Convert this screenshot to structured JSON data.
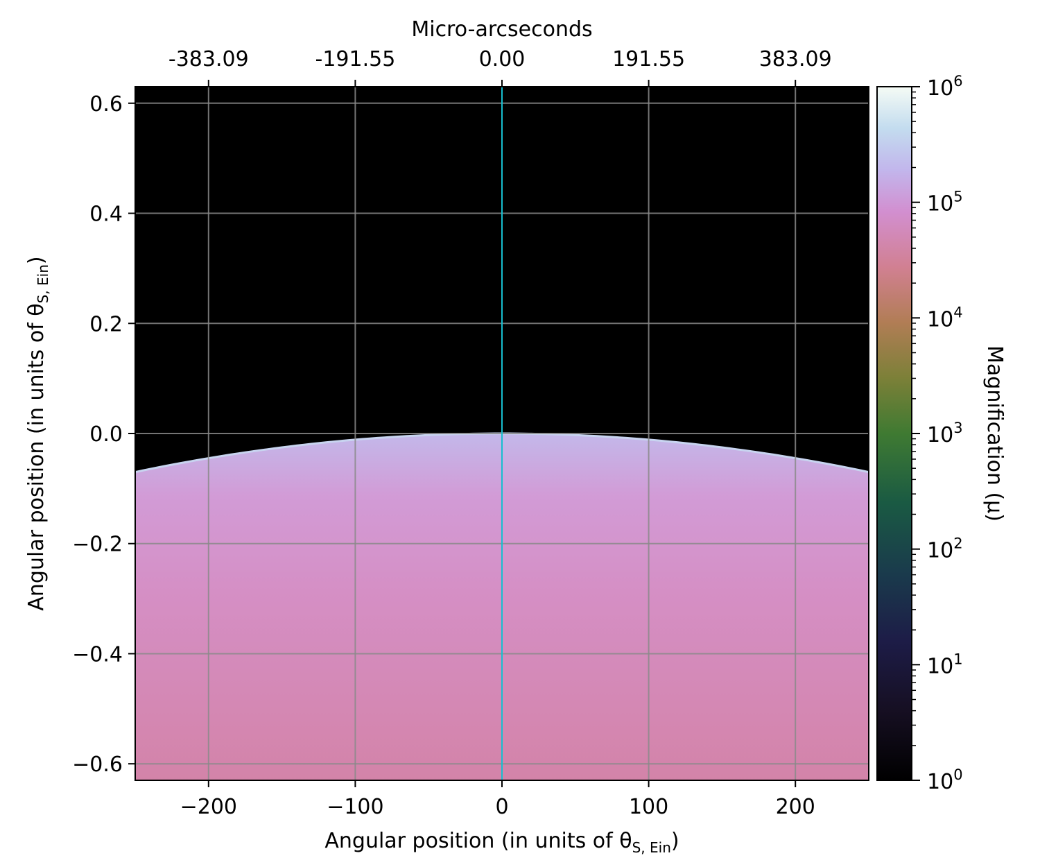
{
  "chart_data": {
    "type": "heatmap",
    "title": "",
    "xlabel": "Angular position (in units of θ",
    "xlabel_sub": "S, Ein",
    "xlabel_end": ")",
    "ylabel": "Angular position (in units of θ",
    "ylabel_sub": "S, Ein",
    "ylabel_end": ")",
    "top_xlabel": "Micro-arcseconds",
    "xlim": [
      -250,
      250
    ],
    "ylim": [
      -0.63,
      0.63
    ],
    "x_ticks": [
      -200,
      -100,
      0,
      100,
      200
    ],
    "x_tick_labels": [
      "−200",
      "−100",
      "0",
      "100",
      "200"
    ],
    "y_ticks": [
      0.6,
      0.4,
      0.2,
      0.0,
      -0.2,
      -0.4,
      -0.6
    ],
    "y_tick_labels": [
      "0.6",
      "0.4",
      "0.2",
      "0.0",
      "−0.2",
      "−0.4",
      "−0.6"
    ],
    "top_ticks": [
      -200,
      -100,
      0,
      100,
      200
    ],
    "top_tick_labels": [
      "-383.09",
      "-191.55",
      "0.00",
      "191.55",
      "383.09"
    ],
    "grid": true,
    "caustic_line_x": 0,
    "caustic_line_color": "#17becf",
    "boundary": {
      "y_at_center": 0.0,
      "y_at_edges": -0.07
    },
    "magnification_region": "below boundary",
    "colorbar": {
      "label": "Magnification (μ)",
      "scale": "log",
      "range": [
        1,
        1000000
      ],
      "ticks": [
        {
          "value": 1000000,
          "base": "10",
          "exp": "6"
        },
        {
          "value": 100000,
          "base": "10",
          "exp": "5"
        },
        {
          "value": 10000,
          "base": "10",
          "exp": "4"
        },
        {
          "value": 1000,
          "base": "10",
          "exp": "3"
        },
        {
          "value": 100,
          "base": "10",
          "exp": "2"
        },
        {
          "value": 10,
          "base": "10",
          "exp": "1"
        },
        {
          "value": 1,
          "base": "10",
          "exp": "0"
        }
      ]
    },
    "colors": {
      "background": "#000000",
      "region_top": "#c3b8ea",
      "region_mid": "#d495c9",
      "region_bottom": "#d383a8",
      "grid": "#8a8a8a",
      "boundary_edge": "#c8d4f0"
    }
  }
}
